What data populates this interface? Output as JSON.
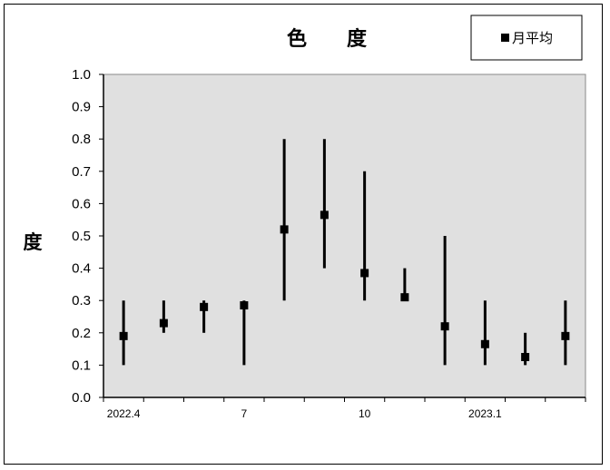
{
  "chart_data": {
    "type": "scatter",
    "title": "色　　度",
    "xlabel": "",
    "ylabel": "度",
    "ylim": [
      0,
      1.0
    ],
    "yticks": [
      "0.0",
      "0.1",
      "0.2",
      "0.3",
      "0.4",
      "0.5",
      "0.6",
      "0.7",
      "0.8",
      "0.9",
      "1.0"
    ],
    "x": [
      "2022.4",
      "2022.5",
      "2022.6",
      "2022.7",
      "2022.8",
      "2022.9",
      "2022.10",
      "2022.11",
      "2022.12",
      "2023.1",
      "2023.2",
      "2023.3"
    ],
    "x_tick_labels": [
      {
        "index": 0,
        "label": "2022.4"
      },
      {
        "index": 3,
        "label": "7"
      },
      {
        "index": 6,
        "label": "10"
      },
      {
        "index": 9,
        "label": "2023.1"
      }
    ],
    "legend": {
      "position": "top-right",
      "entries": [
        "月平均"
      ]
    },
    "grid": false,
    "plot_background": "#e0e0e0",
    "series": [
      {
        "name": "月平均",
        "color": "#000000",
        "marker": "square",
        "values": [
          0.19,
          0.23,
          0.28,
          0.285,
          0.52,
          0.565,
          0.385,
          0.31,
          0.22,
          0.165,
          0.125,
          0.19
        ],
        "min": [
          0.1,
          0.2,
          0.2,
          0.1,
          0.3,
          0.4,
          0.3,
          0.3,
          0.1,
          0.1,
          0.1,
          0.1
        ],
        "max": [
          0.3,
          0.3,
          0.3,
          0.3,
          0.8,
          0.8,
          0.7,
          0.4,
          0.5,
          0.3,
          0.2,
          0.3
        ]
      }
    ]
  }
}
